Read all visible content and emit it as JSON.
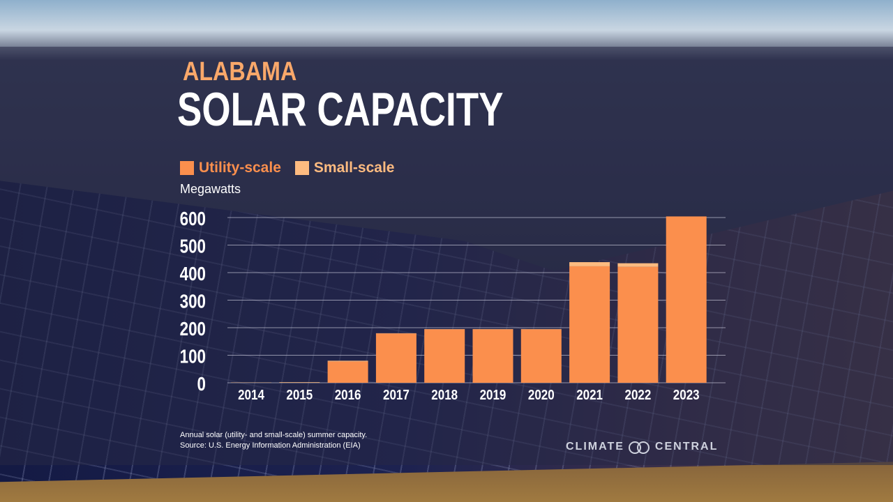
{
  "header": {
    "state": "ALABAMA",
    "title": "SOLAR CAPACITY"
  },
  "footer": {
    "note": "Annual solar (utility- and small-scale) summer capacity.",
    "source": "Source: U.S. Energy Information Administration (EIA)",
    "logo": "CLIMATE CENTRAL"
  },
  "chart_data": {
    "type": "bar",
    "stacked": true,
    "title": "SOLAR CAPACITY",
    "ylabel": "Megawatts",
    "categories": [
      "2014",
      "2015",
      "2016",
      "2017",
      "2018",
      "2019",
      "2020",
      "2021",
      "2022",
      "2023"
    ],
    "series": [
      {
        "name": "Utility-scale",
        "color": "#fb8f4d",
        "values": [
          0,
          0,
          77,
          179,
          194,
          194,
          194,
          423,
          421,
          604
        ]
      },
      {
        "name": "Small-scale",
        "color": "#fdbb80",
        "values": [
          1,
          2,
          3,
          1,
          1,
          1,
          1,
          15,
          13,
          0
        ]
      }
    ],
    "ylim": [
      0,
      600
    ],
    "yticks": [
      0,
      100,
      200,
      300,
      400,
      500,
      600
    ],
    "grid": true,
    "legend": "top-left"
  }
}
